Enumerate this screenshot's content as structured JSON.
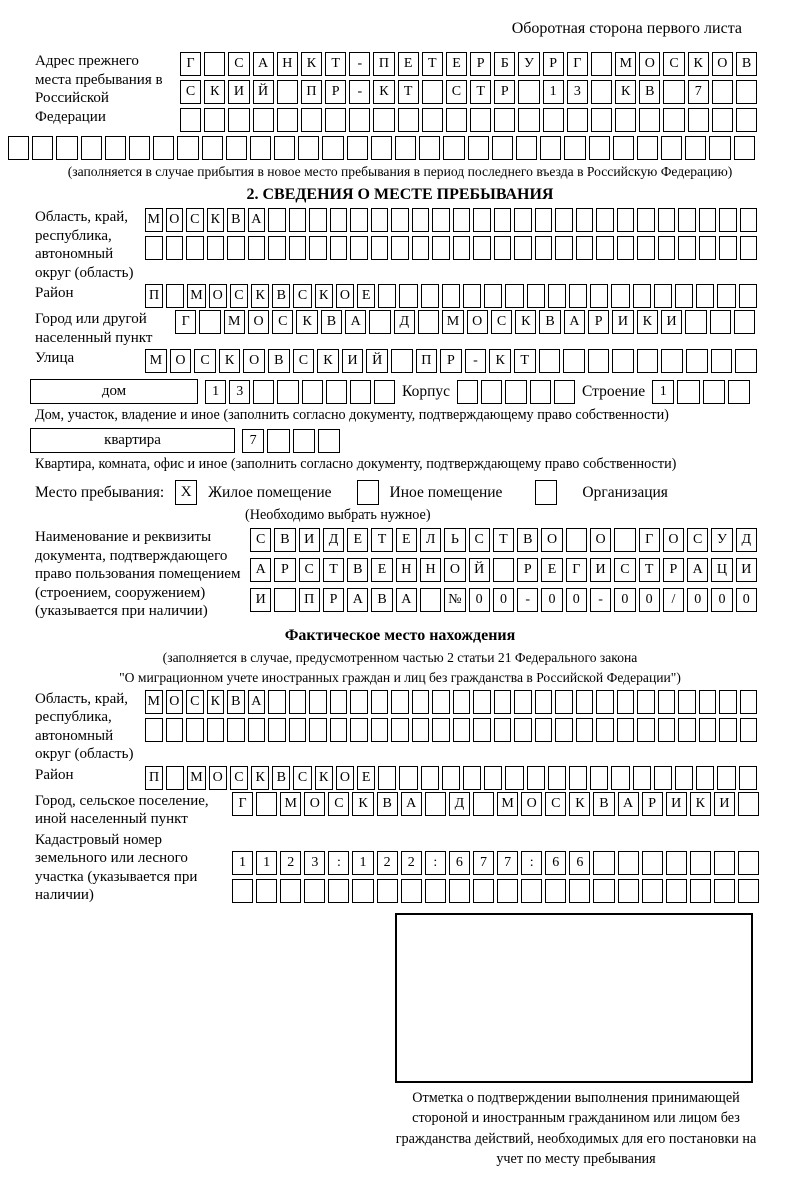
{
  "colors": {
    "ink": "#000000",
    "paper": "#ffffff"
  },
  "page": {
    "header_note": "Оборотная сторона первого листа"
  },
  "prev": {
    "label": "Адрес прежнего места пребывания в Российской Федерации",
    "rows": [
      {
        "text": "Г САНКТ-ПЕТЕРБУРГ МОСКОВ",
        "count": 24
      },
      {
        "text": "СКИЙ ПР-КТ СТР 13 КВ 7",
        "count": 24
      },
      {
        "text": "",
        "count": 24
      }
    ],
    "full_row": {
      "text": "",
      "count": 31
    },
    "caption": "(заполняется в случае прибытия в новое место пребывания в период последнего въезда в Российскую Федерацию)"
  },
  "s2": {
    "title": "2. СВЕДЕНИЯ О МЕСТЕ ПРЕБЫВАНИЯ",
    "fields": {
      "oblast": {
        "label": "Область, край, республика, автономный округ (область)",
        "rows": [
          {
            "text": "МОСКВА",
            "count": 30
          },
          {
            "text": "",
            "count": 30
          }
        ]
      },
      "raion": {
        "label": "Район",
        "rows": [
          {
            "text": "П МОСКВСКОЕ",
            "count": 29
          }
        ]
      },
      "gorod": {
        "label": "Город или другой населенный пункт",
        "rows": [
          {
            "text": "Г МОСКВА Д МОСКВАРИКИ",
            "count": 24
          }
        ]
      },
      "ulitsa": {
        "label": "Улица",
        "rows": [
          {
            "text": "МОСКОВСКИЙ ПР-КТ",
            "count": 25
          }
        ]
      }
    },
    "dom": {
      "box_label": "дом",
      "number": {
        "text": "13",
        "count": 8
      },
      "korpus_label": "Корпус",
      "korpus": {
        "text": "",
        "count": 5
      },
      "stroenie_label": "Строение",
      "stroenie": {
        "text": "1",
        "count": 4
      }
    },
    "dom_caption": "Дом, участок, владение и иное (заполнить согласно документу, подтверждающему право собственности)",
    "kvartira": {
      "box_label": "квартира",
      "number": {
        "text": "7",
        "count": 4
      }
    },
    "kvartira_caption": "Квартира, комната, офис и иное (заполнить согласно документу, подтверждающему право собственности)",
    "mesto": {
      "label": "Место пребывания:",
      "options": [
        {
          "label": "Жилое помещение",
          "mark": "X"
        },
        {
          "label": "Иное помещение",
          "mark": ""
        },
        {
          "label": "Организация",
          "mark": ""
        }
      ],
      "caption": "(Необходимо выбрать нужное)"
    },
    "doc": {
      "label": "Наименование и реквизиты документа, подтверждающего право пользования помещением (строением, сооружением) (указывается при наличии)",
      "rows": [
        {
          "text": "СВИДЕТЕЛЬСТВО О ГОСУД",
          "count": 21
        },
        {
          "text": "АРСТВЕННОЙ РЕГИСТРАЦИ",
          "count": 21
        },
        {
          "text": "И ПРАВА №00-00-00/000",
          "count": 21
        }
      ]
    }
  },
  "fakt": {
    "title": "Фактическое место нахождения",
    "caption1": "(заполняется в случае, предусмотренном частью 2 статьи 21 Федерального закона",
    "caption2": "\"О миграционном учете иностранных граждан и лиц без гражданства в Российской Федерации\")",
    "fields": {
      "oblast": {
        "label": "Область, край, республика, автономный округ (область)",
        "rows": [
          {
            "text": "МОСКВА",
            "count": 30
          },
          {
            "text": "",
            "count": 30
          }
        ]
      },
      "raion": {
        "label": "Район",
        "rows": [
          {
            "text": "П МОСКВСКОЕ",
            "count": 29
          }
        ]
      },
      "gorod": {
        "label": "Город, сельское поселение, иной населенный пункт",
        "rows": [
          {
            "text": "Г МОСКВА Д МОСКВАРИКИ",
            "count": 22
          }
        ]
      },
      "kadastr": {
        "label": "Кадастровый номер земельного или лесного участка (указывается при наличии)",
        "rows": [
          {
            "text": "1123:122:677:66",
            "count": 22
          },
          {
            "text": "",
            "count": 22
          }
        ]
      }
    },
    "stamp_caption": "Отметка о подтверждении выполнения принимающей стороной и иностранным гражданином или лицом без гражданства действий, необходимых для его постановки на учет по месту пребывания"
  }
}
